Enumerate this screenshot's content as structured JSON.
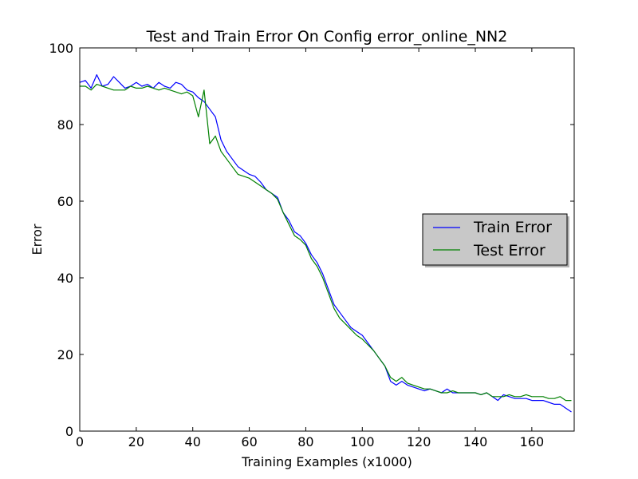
{
  "chart_data": {
    "type": "line",
    "title": "Test and Train Error On Config error_online_NN2",
    "xlabel": "Training Examples (x1000)",
    "ylabel": "Error",
    "xlim": [
      0,
      175
    ],
    "ylim": [
      0,
      100
    ],
    "xticks": [
      0,
      20,
      40,
      60,
      80,
      100,
      120,
      140,
      160
    ],
    "yticks": [
      0,
      20,
      40,
      60,
      80,
      100
    ],
    "grid": false,
    "legend_position": "center-right",
    "series": [
      {
        "name": "Train Error",
        "color": "#0000ff",
        "x": [
          0,
          2,
          4,
          6,
          8,
          10,
          12,
          14,
          16,
          18,
          20,
          22,
          24,
          26,
          28,
          30,
          32,
          34,
          36,
          38,
          40,
          42,
          44,
          46,
          48,
          50,
          52,
          54,
          56,
          58,
          60,
          62,
          64,
          66,
          68,
          70,
          72,
          74,
          76,
          78,
          80,
          82,
          84,
          86,
          88,
          90,
          92,
          94,
          96,
          98,
          100,
          102,
          104,
          106,
          108,
          110,
          112,
          114,
          116,
          118,
          120,
          122,
          124,
          126,
          128,
          130,
          132,
          134,
          136,
          138,
          140,
          142,
          144,
          146,
          148,
          150,
          152,
          154,
          156,
          158,
          160,
          162,
          164,
          166,
          168,
          170,
          172,
          174
        ],
        "y": [
          91,
          91.5,
          89.5,
          93,
          90,
          90.5,
          92.5,
          91,
          89.5,
          90,
          91,
          90,
          90.5,
          89.5,
          91,
          90,
          89.5,
          91,
          90.5,
          89,
          88.5,
          87,
          86,
          84,
          82,
          76,
          73,
          71,
          69,
          68,
          67,
          66.5,
          65,
          63,
          62,
          61,
          57,
          55,
          52,
          51,
          49,
          46,
          44,
          41,
          37,
          33,
          31,
          29,
          27,
          26,
          25,
          23,
          21,
          19,
          17,
          13,
          12,
          13,
          12,
          11.5,
          11,
          10.5,
          11,
          10.5,
          10,
          11,
          10,
          10,
          10,
          10,
          10,
          9.5,
          10,
          9,
          8,
          9.5,
          9,
          8.5,
          8.5,
          8.5,
          8,
          8,
          8,
          7.5,
          7,
          7,
          6,
          5
        ]
      },
      {
        "name": "Test Error",
        "color": "#008000",
        "x": [
          0,
          2,
          4,
          6,
          8,
          10,
          12,
          14,
          16,
          18,
          20,
          22,
          24,
          26,
          28,
          30,
          32,
          34,
          36,
          38,
          40,
          42,
          44,
          46,
          48,
          50,
          52,
          54,
          56,
          58,
          60,
          62,
          64,
          66,
          68,
          70,
          72,
          74,
          76,
          78,
          80,
          82,
          84,
          86,
          88,
          90,
          92,
          94,
          96,
          98,
          100,
          102,
          104,
          106,
          108,
          110,
          112,
          114,
          116,
          118,
          120,
          122,
          124,
          126,
          128,
          130,
          132,
          134,
          136,
          138,
          140,
          142,
          144,
          146,
          148,
          150,
          152,
          154,
          156,
          158,
          160,
          162,
          164,
          166,
          168,
          170,
          172,
          174
        ],
        "y": [
          90,
          90,
          89,
          90.5,
          90,
          89.5,
          89,
          89,
          89,
          90,
          89.5,
          89.5,
          90,
          89.5,
          89,
          89.5,
          89,
          88.5,
          88,
          88.5,
          87.5,
          82,
          89,
          75,
          77,
          73,
          71,
          69,
          67,
          66.5,
          66,
          65,
          64,
          63,
          62,
          60.5,
          57,
          54,
          51,
          50,
          48.5,
          45,
          43,
          40,
          36,
          32,
          29.5,
          28,
          26.5,
          25,
          24,
          22.5,
          21,
          19,
          17,
          14,
          13,
          14,
          12.5,
          12,
          11.5,
          11,
          11,
          10.5,
          10,
          10,
          10.5,
          10,
          10,
          10,
          10,
          9.5,
          10,
          9,
          9,
          9,
          9.5,
          9,
          9,
          9.5,
          9,
          9,
          9,
          8.5,
          8.5,
          9,
          8,
          8
        ]
      }
    ]
  }
}
